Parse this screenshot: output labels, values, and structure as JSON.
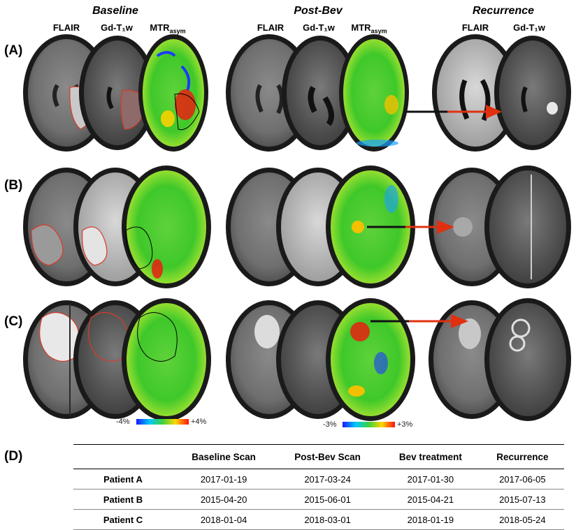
{
  "groups": {
    "baseline": "Baseline",
    "postbev": "Post-Bev",
    "recurrence": "Recurrence"
  },
  "columns": {
    "baseline": [
      "FLAIR",
      "Gd-T₁w",
      "MTR"
    ],
    "postbev": [
      "FLAIR",
      "Gd-T₁w",
      "MTR"
    ],
    "recurrence": [
      "FLAIR",
      "Gd-T₁w"
    ],
    "mtr_subscript": "asym"
  },
  "rows": [
    {
      "label": "(A)"
    },
    {
      "label": "(B)"
    },
    {
      "label": "(C)"
    }
  ],
  "scales": {
    "baseline": {
      "min": "-4%",
      "max": "+4%"
    },
    "postbev": {
      "min": "-3%",
      "max": "+3%"
    }
  },
  "table": {
    "panel_label": "(D)",
    "headers": [
      "",
      "Baseline Scan",
      "Post-Bev Scan",
      "Bev treatment",
      "Recurrence"
    ],
    "rows": [
      {
        "patient": "Patient A",
        "values": [
          "2017-01-19",
          "2017-03-24",
          "2017-01-30",
          "2017-06-05"
        ]
      },
      {
        "patient": "Patient B",
        "values": [
          "2015-04-20",
          "2015-06-01",
          "2015-04-21",
          "2015-07-13"
        ]
      },
      {
        "patient": "Patient C",
        "values": [
          "2018-01-04",
          "2018-03-01",
          "2018-01-19",
          "2018-05-24"
        ]
      }
    ]
  },
  "colors": {
    "outline_red": "#d83a2a",
    "arrow_red": "#e03010",
    "arrow_dark": "#111111"
  }
}
